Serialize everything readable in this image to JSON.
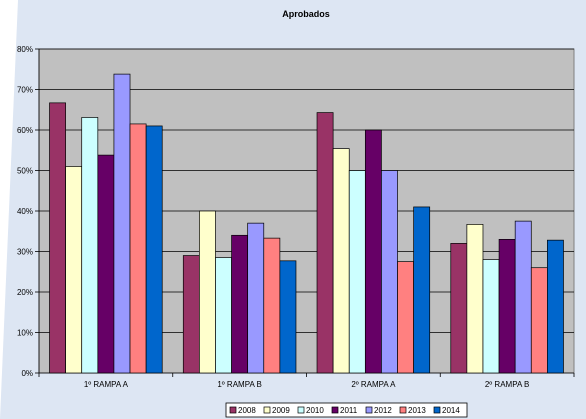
{
  "chart_data": {
    "type": "bar",
    "title": "Aprobados",
    "categories": [
      "1º RAMPA A",
      "1º RAMPA B",
      "2º RAMPA A",
      "2º RAMPA B"
    ],
    "series": [
      {
        "name": "2008",
        "color": "#993366",
        "values": [
          66.7,
          29.0,
          64.3,
          32.0
        ]
      },
      {
        "name": "2009",
        "color": "#FFFFCC",
        "values": [
          51.0,
          40.0,
          55.4,
          36.7
        ]
      },
      {
        "name": "2010",
        "color": "#CCFFFF",
        "values": [
          63.1,
          28.5,
          50.0,
          28.0
        ]
      },
      {
        "name": "2011",
        "color": "#660066",
        "values": [
          53.8,
          34.0,
          60.0,
          33.0
        ]
      },
      {
        "name": "2012",
        "color": "#9999FF",
        "values": [
          73.8,
          37.0,
          50.0,
          37.5
        ]
      },
      {
        "name": "2013",
        "color": "#FF8080",
        "values": [
          61.5,
          33.3,
          27.5,
          26.0
        ]
      },
      {
        "name": "2014",
        "color": "#0066CC",
        "values": [
          61.0,
          27.7,
          41.0,
          32.8
        ]
      }
    ],
    "y_ticks": [
      "0%",
      "10%",
      "20%",
      "30%",
      "40%",
      "50%",
      "60%",
      "70%",
      "80%"
    ],
    "ylim": [
      0,
      80
    ],
    "grid": true,
    "legend_position": "bottom",
    "plot_background": "#C0C0C0"
  }
}
